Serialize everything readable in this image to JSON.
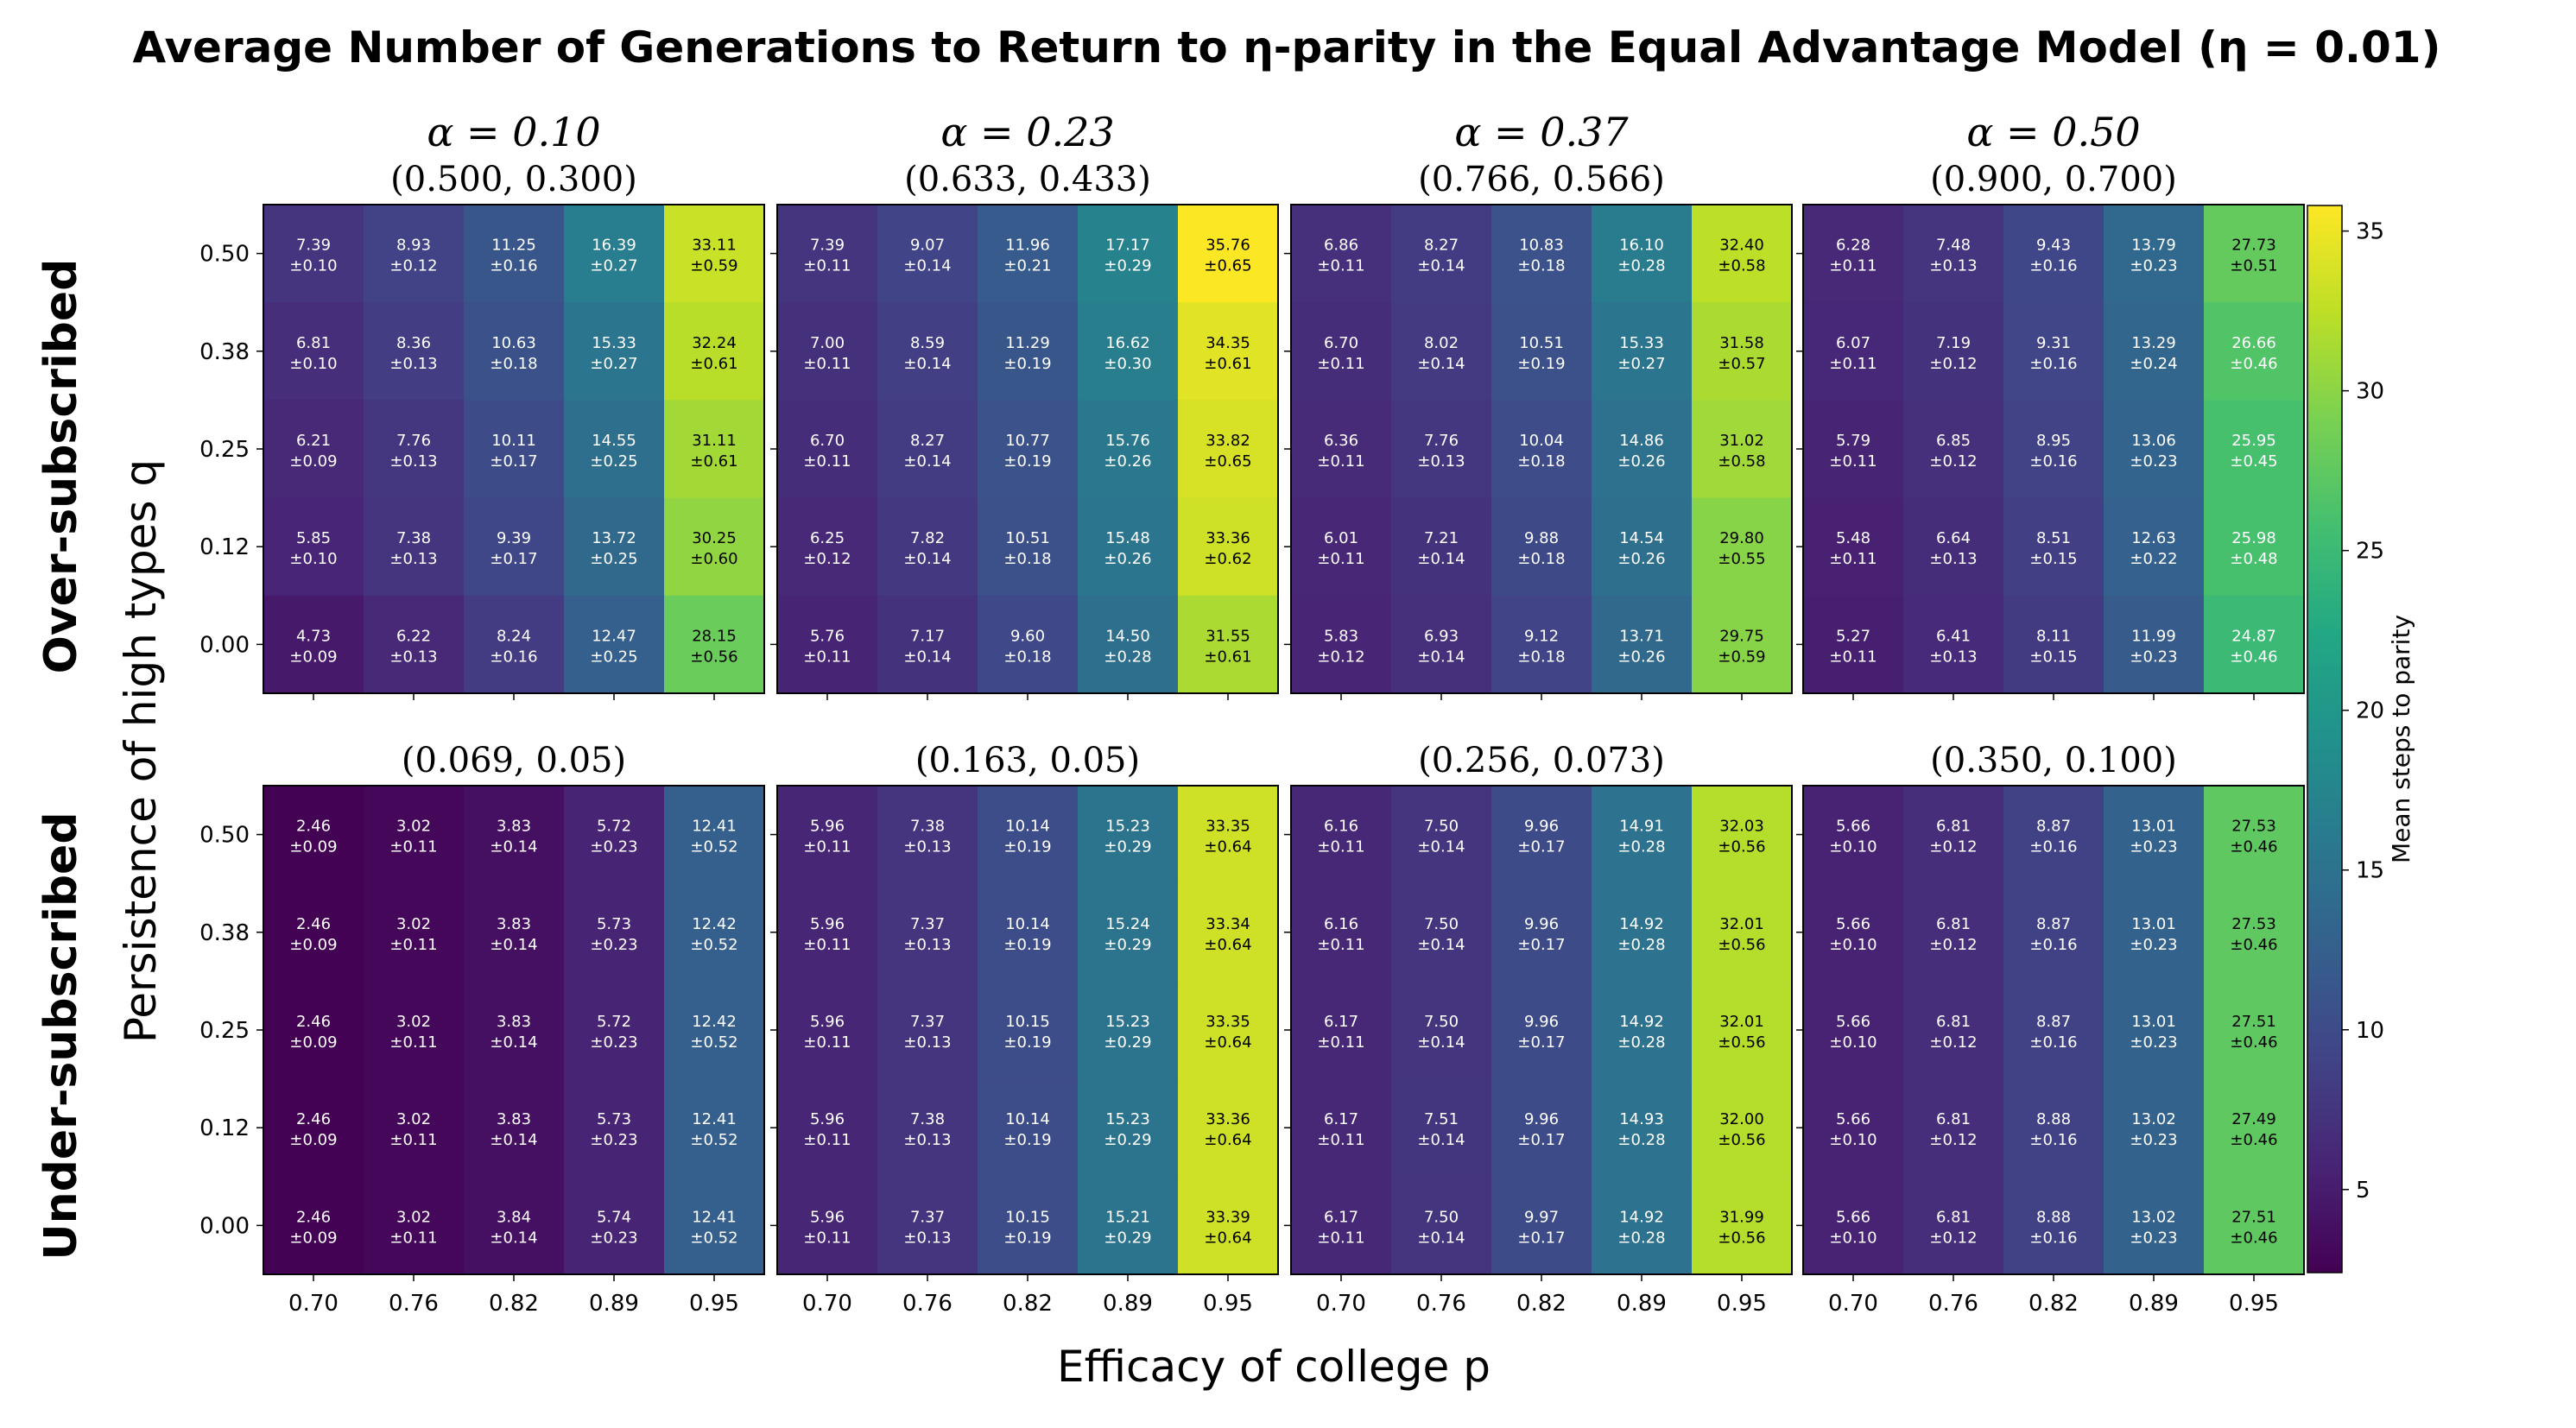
{
  "chart_data": {
    "type": "heatmap",
    "title": "Average Number of Generations to Return to η-parity in the Equal Advantage Model (η = 0.01)",
    "xlabel": "Efficacy of college p",
    "ylabel": "Persistence of high types q",
    "row_labels": [
      "Over-subscribed",
      "Under-subscribed"
    ],
    "x_ticks": [
      "0.70",
      "0.76",
      "0.82",
      "0.89",
      "0.95"
    ],
    "y_ticks": [
      "0.50",
      "0.38",
      "0.25",
      "0.12",
      "0.00"
    ],
    "alpha_labels": [
      "α = 0.10",
      "α = 0.23",
      "α = 0.37",
      "α = 0.50"
    ],
    "colorbar": {
      "label": "Mean steps to parity",
      "ticks": [
        "5",
        "10",
        "15",
        "20",
        "25",
        "30",
        "35"
      ],
      "range": [
        2.4,
        35.8
      ],
      "colormap": "viridis"
    },
    "panels": [
      {
        "subtitle": "(0.500, 0.300)",
        "means": [
          [
            "7.39",
            "8.93",
            "11.25",
            "16.39",
            "33.11"
          ],
          [
            "6.81",
            "8.36",
            "10.63",
            "15.33",
            "32.24"
          ],
          [
            "6.21",
            "7.76",
            "10.11",
            "14.55",
            "31.11"
          ],
          [
            "5.85",
            "7.38",
            "9.39",
            "13.72",
            "30.25"
          ],
          [
            "4.73",
            "6.22",
            "8.24",
            "12.47",
            "28.15"
          ]
        ],
        "errors": [
          [
            "±0.10",
            "±0.12",
            "±0.16",
            "±0.27",
            "±0.59"
          ],
          [
            "±0.10",
            "±0.13",
            "±0.18",
            "±0.27",
            "±0.61"
          ],
          [
            "±0.09",
            "±0.13",
            "±0.17",
            "±0.25",
            "±0.61"
          ],
          [
            "±0.10",
            "±0.13",
            "±0.17",
            "±0.25",
            "±0.60"
          ],
          [
            "±0.09",
            "±0.13",
            "±0.16",
            "±0.25",
            "±0.56"
          ]
        ]
      },
      {
        "subtitle": "(0.633, 0.433)",
        "means": [
          [
            "7.39",
            "9.07",
            "11.96",
            "17.17",
            "35.76"
          ],
          [
            "7.00",
            "8.59",
            "11.29",
            "16.62",
            "34.35"
          ],
          [
            "6.70",
            "8.27",
            "10.77",
            "15.76",
            "33.82"
          ],
          [
            "6.25",
            "7.82",
            "10.51",
            "15.48",
            "33.36"
          ],
          [
            "5.76",
            "7.17",
            "9.60",
            "14.50",
            "31.55"
          ]
        ],
        "errors": [
          [
            "±0.11",
            "±0.14",
            "±0.21",
            "±0.29",
            "±0.65"
          ],
          [
            "±0.11",
            "±0.14",
            "±0.19",
            "±0.30",
            "±0.61"
          ],
          [
            "±0.11",
            "±0.14",
            "±0.19",
            "±0.26",
            "±0.65"
          ],
          [
            "±0.12",
            "±0.14",
            "±0.18",
            "±0.26",
            "±0.62"
          ],
          [
            "±0.11",
            "±0.14",
            "±0.18",
            "±0.28",
            "±0.61"
          ]
        ]
      },
      {
        "subtitle": "(0.766, 0.566)",
        "means": [
          [
            "6.86",
            "8.27",
            "10.83",
            "16.10",
            "32.40"
          ],
          [
            "6.70",
            "8.02",
            "10.51",
            "15.33",
            "31.58"
          ],
          [
            "6.36",
            "7.76",
            "10.04",
            "14.86",
            "31.02"
          ],
          [
            "6.01",
            "7.21",
            "9.88",
            "14.54",
            "29.80"
          ],
          [
            "5.83",
            "6.93",
            "9.12",
            "13.71",
            "29.75"
          ]
        ],
        "errors": [
          [
            "±0.11",
            "±0.14",
            "±0.18",
            "±0.28",
            "±0.58"
          ],
          [
            "±0.11",
            "±0.14",
            "±0.19",
            "±0.27",
            "±0.57"
          ],
          [
            "±0.11",
            "±0.13",
            "±0.18",
            "±0.26",
            "±0.58"
          ],
          [
            "±0.11",
            "±0.14",
            "±0.18",
            "±0.26",
            "±0.55"
          ],
          [
            "±0.12",
            "±0.14",
            "±0.18",
            "±0.26",
            "±0.59"
          ]
        ]
      },
      {
        "subtitle": "(0.900, 0.700)",
        "means": [
          [
            "6.28",
            "7.48",
            "9.43",
            "13.79",
            "27.73"
          ],
          [
            "6.07",
            "7.19",
            "9.31",
            "13.29",
            "26.66"
          ],
          [
            "5.79",
            "6.85",
            "8.95",
            "13.06",
            "25.95"
          ],
          [
            "5.48",
            "6.64",
            "8.51",
            "12.63",
            "25.98"
          ],
          [
            "5.27",
            "6.41",
            "8.11",
            "11.99",
            "24.87"
          ]
        ],
        "errors": [
          [
            "±0.11",
            "±0.13",
            "±0.16",
            "±0.23",
            "±0.51"
          ],
          [
            "±0.11",
            "±0.12",
            "±0.16",
            "±0.24",
            "±0.46"
          ],
          [
            "±0.11",
            "±0.12",
            "±0.16",
            "±0.23",
            "±0.45"
          ],
          [
            "±0.11",
            "±0.13",
            "±0.15",
            "±0.22",
            "±0.48"
          ],
          [
            "±0.11",
            "±0.13",
            "±0.15",
            "±0.23",
            "±0.46"
          ]
        ]
      },
      {
        "subtitle": "(0.069, 0.05)",
        "means": [
          [
            "2.46",
            "3.02",
            "3.83",
            "5.72",
            "12.41"
          ],
          [
            "2.46",
            "3.02",
            "3.83",
            "5.73",
            "12.42"
          ],
          [
            "2.46",
            "3.02",
            "3.83",
            "5.72",
            "12.42"
          ],
          [
            "2.46",
            "3.02",
            "3.83",
            "5.73",
            "12.41"
          ],
          [
            "2.46",
            "3.02",
            "3.84",
            "5.74",
            "12.41"
          ]
        ],
        "errors": [
          [
            "±0.09",
            "±0.11",
            "±0.14",
            "±0.23",
            "±0.52"
          ],
          [
            "±0.09",
            "±0.11",
            "±0.14",
            "±0.23",
            "±0.52"
          ],
          [
            "±0.09",
            "±0.11",
            "±0.14",
            "±0.23",
            "±0.52"
          ],
          [
            "±0.09",
            "±0.11",
            "±0.14",
            "±0.23",
            "±0.52"
          ],
          [
            "±0.09",
            "±0.11",
            "±0.14",
            "±0.23",
            "±0.52"
          ]
        ]
      },
      {
        "subtitle": "(0.163, 0.05)",
        "means": [
          [
            "5.96",
            "7.38",
            "10.14",
            "15.23",
            "33.35"
          ],
          [
            "5.96",
            "7.37",
            "10.14",
            "15.24",
            "33.34"
          ],
          [
            "5.96",
            "7.37",
            "10.15",
            "15.23",
            "33.35"
          ],
          [
            "5.96",
            "7.38",
            "10.14",
            "15.23",
            "33.36"
          ],
          [
            "5.96",
            "7.37",
            "10.15",
            "15.21",
            "33.39"
          ]
        ],
        "errors": [
          [
            "±0.11",
            "±0.13",
            "±0.19",
            "±0.29",
            "±0.64"
          ],
          [
            "±0.11",
            "±0.13",
            "±0.19",
            "±0.29",
            "±0.64"
          ],
          [
            "±0.11",
            "±0.13",
            "±0.19",
            "±0.29",
            "±0.64"
          ],
          [
            "±0.11",
            "±0.13",
            "±0.19",
            "±0.29",
            "±0.64"
          ],
          [
            "±0.11",
            "±0.13",
            "±0.19",
            "±0.29",
            "±0.64"
          ]
        ]
      },
      {
        "subtitle": "(0.256, 0.073)",
        "means": [
          [
            "6.16",
            "7.50",
            "9.96",
            "14.91",
            "32.03"
          ],
          [
            "6.16",
            "7.50",
            "9.96",
            "14.92",
            "32.01"
          ],
          [
            "6.17",
            "7.50",
            "9.96",
            "14.92",
            "32.01"
          ],
          [
            "6.17",
            "7.51",
            "9.96",
            "14.93",
            "32.00"
          ],
          [
            "6.17",
            "7.50",
            "9.97",
            "14.92",
            "31.99"
          ]
        ],
        "errors": [
          [
            "±0.11",
            "±0.14",
            "±0.17",
            "±0.28",
            "±0.56"
          ],
          [
            "±0.11",
            "±0.14",
            "±0.17",
            "±0.28",
            "±0.56"
          ],
          [
            "±0.11",
            "±0.14",
            "±0.17",
            "±0.28",
            "±0.56"
          ],
          [
            "±0.11",
            "±0.14",
            "±0.17",
            "±0.28",
            "±0.56"
          ],
          [
            "±0.11",
            "±0.14",
            "±0.17",
            "±0.28",
            "±0.56"
          ]
        ]
      },
      {
        "subtitle": "(0.350, 0.100)",
        "means": [
          [
            "5.66",
            "6.81",
            "8.87",
            "13.01",
            "27.53"
          ],
          [
            "5.66",
            "6.81",
            "8.87",
            "13.01",
            "27.53"
          ],
          [
            "5.66",
            "6.81",
            "8.87",
            "13.01",
            "27.51"
          ],
          [
            "5.66",
            "6.81",
            "8.88",
            "13.02",
            "27.49"
          ],
          [
            "5.66",
            "6.81",
            "8.88",
            "13.02",
            "27.51"
          ]
        ],
        "errors": [
          [
            "±0.10",
            "±0.12",
            "±0.16",
            "±0.23",
            "±0.46"
          ],
          [
            "±0.10",
            "±0.12",
            "±0.16",
            "±0.23",
            "±0.46"
          ],
          [
            "±0.10",
            "±0.12",
            "±0.16",
            "±0.23",
            "±0.46"
          ],
          [
            "±0.10",
            "±0.12",
            "±0.16",
            "±0.23",
            "±0.46"
          ],
          [
            "±0.10",
            "±0.12",
            "±0.16",
            "±0.23",
            "±0.46"
          ]
        ]
      }
    ]
  }
}
